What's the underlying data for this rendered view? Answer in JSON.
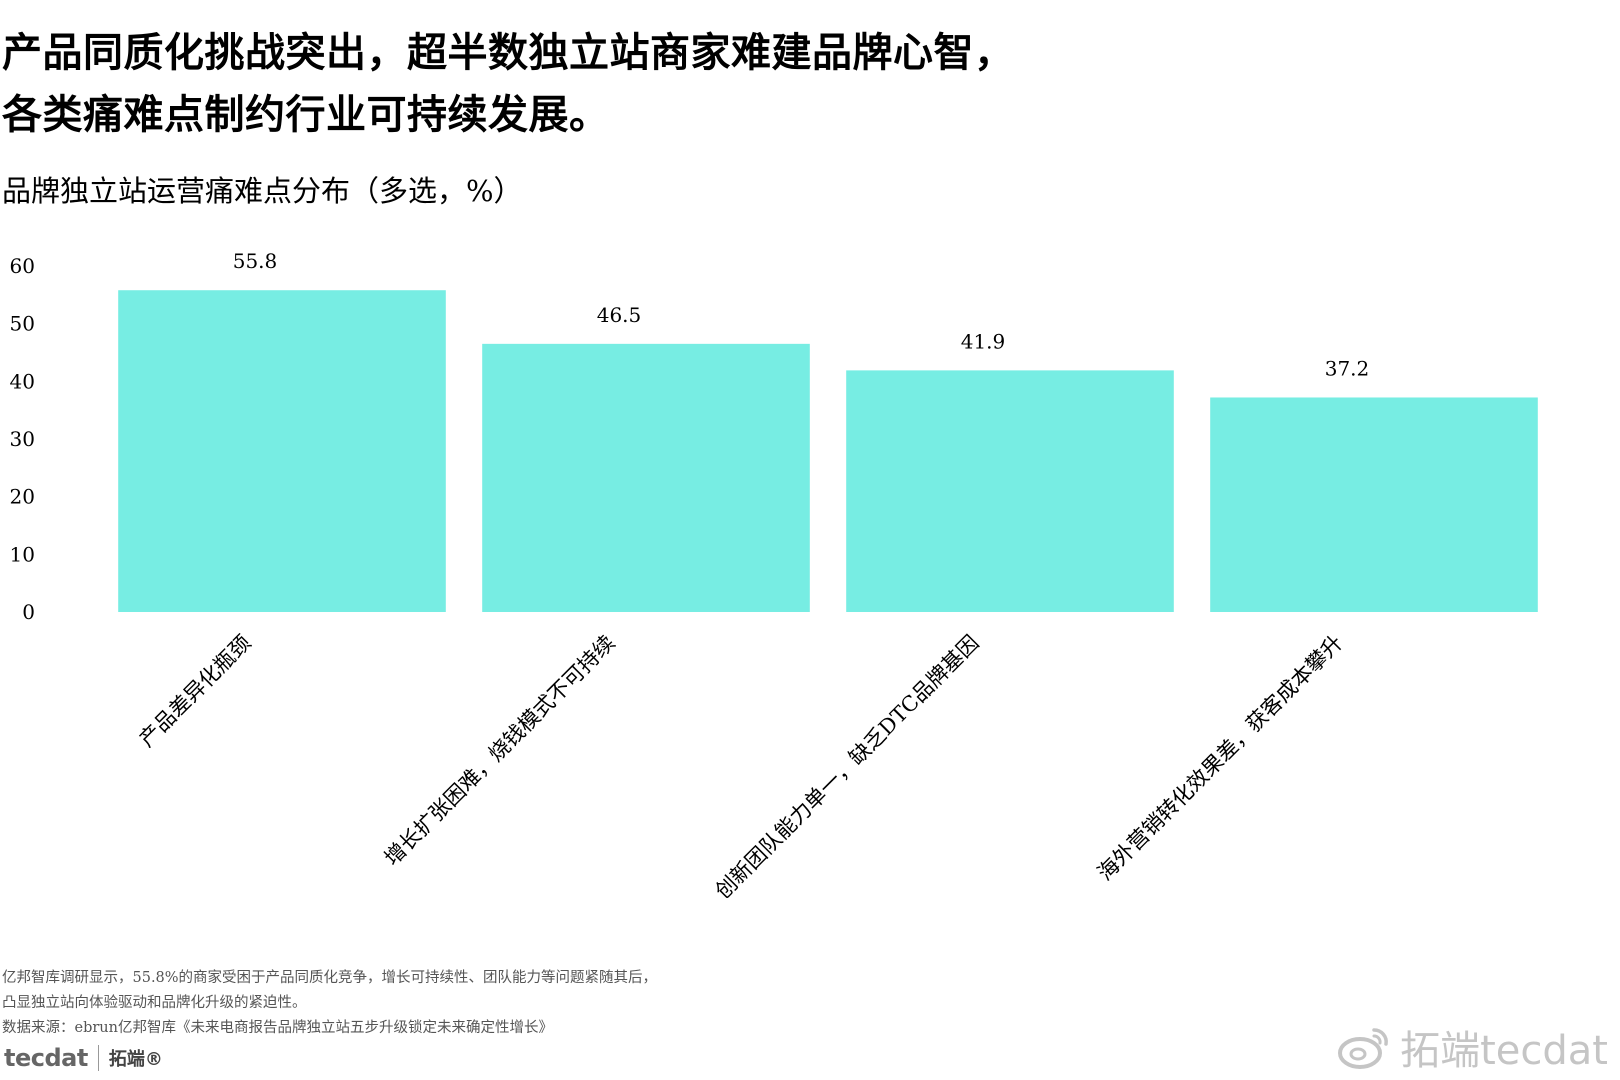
{
  "headline": {
    "line1": "产品同质化挑战突出，超半数独立站商家难建品牌心智，",
    "line2": "各类痛难点制约行业可持续发展。"
  },
  "chart_data": {
    "type": "bar",
    "title": "品牌独立站运营痛难点分布（多选，%）",
    "categories": [
      "产品差异化瓶颈",
      "增长扩张困难，烧钱模式不可持续",
      "创新团队能力单一，缺乏DTC品牌基因",
      "海外营销转化效果差，获客成本攀升"
    ],
    "values": [
      55.8,
      46.5,
      41.9,
      37.2
    ],
    "value_labels": [
      "55.8",
      "46.5",
      "41.9",
      "37.2"
    ],
    "yticks": [
      "0",
      "10",
      "20",
      "30",
      "40",
      "50",
      "60"
    ],
    "ylim": [
      0,
      60
    ],
    "xlabel": "",
    "ylabel": "",
    "grid": false,
    "bar_color": "#77ede3"
  },
  "footnote": {
    "line1": "亿邦智库调研显示，55.8%的商家受困于产品同质化竞争，增长可持续性、团队能力等问题紧随其后，",
    "line2": "凸显独立站向体验驱动和品牌化升级的紧迫性。",
    "line3": "数据来源：ebrun亿邦智库《未来电商报告品牌独立站五步升级锁定未来确定性增长》"
  },
  "brand": {
    "logo_text": "tecdat",
    "logo_cn": "拓端®",
    "watermark_text": "拓端tecdat"
  }
}
